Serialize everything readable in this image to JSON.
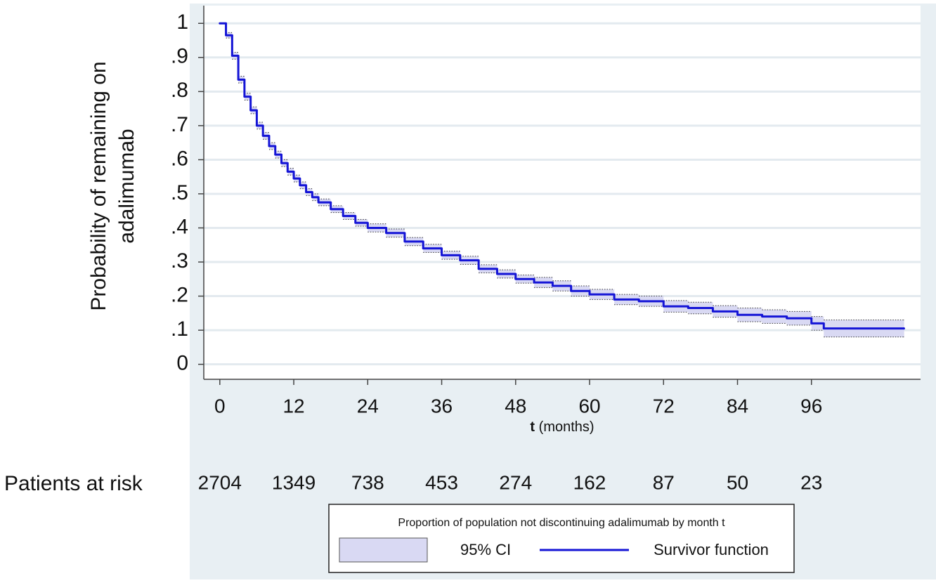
{
  "chart_data": {
    "type": "km",
    "ylabel": [
      "Probability of remaining on",
      "adalimumab"
    ],
    "xlabel_var": "t",
    "xlabel_unit": "(months)",
    "xlim": [
      -2.6,
      113.7
    ],
    "ylim": [
      -0.044,
      1.052
    ],
    "xticks": [
      0,
      12,
      24,
      36,
      48,
      60,
      72,
      84,
      96
    ],
    "yticks": [
      0,
      {
        "value": 0.1,
        "label": ".1"
      },
      {
        "value": 0.2,
        "label": ".2"
      },
      {
        "value": 0.3,
        "label": ".3"
      },
      {
        "value": 0.4,
        "label": ".4"
      },
      {
        "value": 0.5,
        "label": ".5"
      },
      {
        "value": 0.6,
        "label": ".6"
      },
      {
        "value": 0.7,
        "label": ".7"
      },
      {
        "value": 0.8,
        "label": ".8"
      },
      {
        "value": 0.9,
        "label": ".9"
      },
      1
    ],
    "grid": true,
    "x": [
      0,
      1,
      2,
      3,
      4,
      5,
      6,
      7,
      8,
      9,
      10,
      11,
      12,
      13,
      14,
      15,
      16,
      18,
      20,
      22,
      24,
      27,
      30,
      33,
      36,
      39,
      42,
      45,
      48,
      51,
      54,
      57,
      60,
      64,
      68,
      72,
      76,
      80,
      84,
      88,
      92,
      96,
      98,
      111
    ],
    "series": [
      {
        "name": "95% CI",
        "color": "#d9d9f3",
        "lower": [
          1.0,
          0.957,
          0.895,
          0.825,
          0.775,
          0.735,
          0.69,
          0.66,
          0.63,
          0.605,
          0.58,
          0.555,
          0.535,
          0.515,
          0.495,
          0.48,
          0.465,
          0.445,
          0.425,
          0.405,
          0.388,
          0.373,
          0.348,
          0.328,
          0.308,
          0.293,
          0.268,
          0.253,
          0.238,
          0.225,
          0.215,
          0.2,
          0.19,
          0.175,
          0.17,
          0.153,
          0.148,
          0.138,
          0.125,
          0.12,
          0.115,
          0.1,
          0.08,
          0.08
        ],
        "upper": [
          1.0,
          0.973,
          0.915,
          0.845,
          0.795,
          0.755,
          0.71,
          0.68,
          0.65,
          0.625,
          0.6,
          0.575,
          0.555,
          0.535,
          0.515,
          0.5,
          0.485,
          0.465,
          0.445,
          0.425,
          0.412,
          0.397,
          0.372,
          0.352,
          0.332,
          0.317,
          0.292,
          0.277,
          0.262,
          0.255,
          0.245,
          0.23,
          0.22,
          0.205,
          0.2,
          0.187,
          0.182,
          0.172,
          0.165,
          0.16,
          0.155,
          0.14,
          0.13,
          0.13
        ]
      },
      {
        "name": "Survivor function",
        "color": "#1414d6",
        "values": [
          1.0,
          0.965,
          0.905,
          0.835,
          0.785,
          0.745,
          0.7,
          0.67,
          0.64,
          0.615,
          0.59,
          0.565,
          0.545,
          0.525,
          0.505,
          0.49,
          0.475,
          0.455,
          0.435,
          0.415,
          0.4,
          0.385,
          0.36,
          0.34,
          0.32,
          0.305,
          0.28,
          0.265,
          0.25,
          0.24,
          0.23,
          0.215,
          0.205,
          0.19,
          0.185,
          0.17,
          0.165,
          0.155,
          0.145,
          0.14,
          0.135,
          0.12,
          0.105,
          0.105
        ]
      }
    ],
    "at_risk": {
      "label": "Patients at risk",
      "values": [
        2704,
        1349,
        738,
        453,
        274,
        162,
        87,
        50,
        23
      ]
    },
    "legend_title": "Proportion of population not discontinuing adalimumab by month t"
  }
}
